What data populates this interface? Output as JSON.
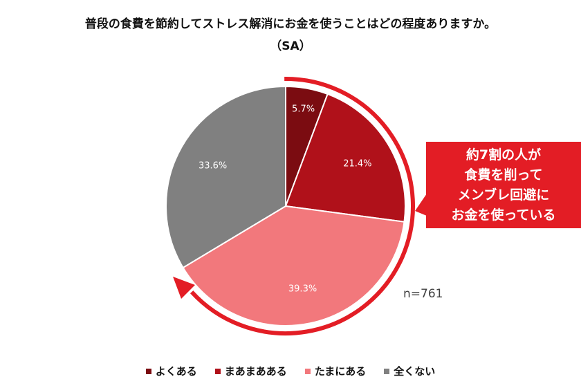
{
  "chart_data": {
    "type": "pie",
    "title": "普段の食費を節約してストレス解消にお金を使うことはどの程度ありますか。",
    "subtitle": "（SA）",
    "categories": [
      "よくある",
      "まあまあある",
      "たまにある",
      "全くない"
    ],
    "values": [
      5.7,
      21.4,
      39.3,
      33.6
    ],
    "labels": [
      "5.7%",
      "21.4%",
      "39.3%",
      "33.6%"
    ],
    "colors": [
      "#7B0C11",
      "#B0111A",
      "#F2787C",
      "#808080"
    ],
    "legend_position": "bottom",
    "sample_size": "n=761",
    "annotation": [
      "約7割の人が",
      "食費を削って",
      "メンブレ回避に",
      "お金を使っている"
    ],
    "annotation_color": "#E31D25"
  }
}
